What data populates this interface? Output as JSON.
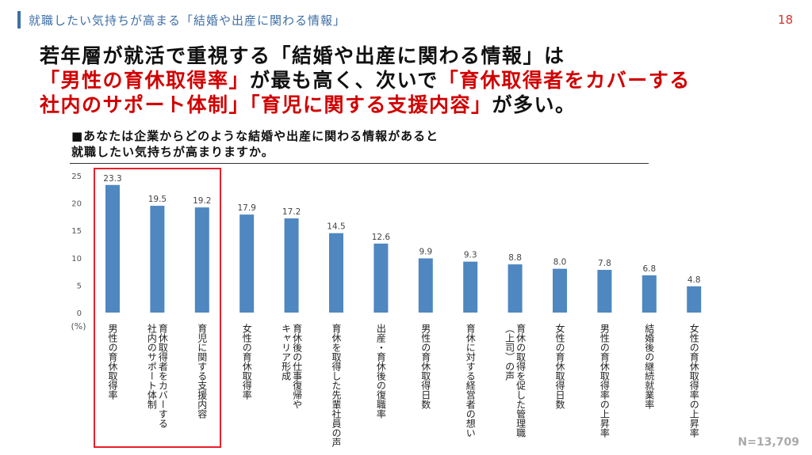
{
  "header": {
    "title": "就職したい気持ちが高まる「結婚や出産に関わる情報」",
    "page_number": "18"
  },
  "headline": {
    "line1": [
      {
        "text": "若年層が就活で重視する「結婚や出産に関わる情報」は",
        "color": "#111111"
      }
    ],
    "line2": [
      {
        "text": "「男性の育休取得率」",
        "color": "#d10000"
      },
      {
        "text": "が最も高く、次いで",
        "color": "#111111"
      },
      {
        "text": "「育休取得者をカバーする",
        "color": "#d10000"
      }
    ],
    "line3": [
      {
        "text": "社内のサポート体制」「育児に関する支援内容」",
        "color": "#d10000"
      },
      {
        "text": "が多い。",
        "color": "#111111"
      }
    ]
  },
  "question": {
    "line1": "■あなたは企業からどのような結婚や出産に関わる情報があると",
    "line2": "就職したい気持ちが高まりますか。"
  },
  "note": "N=13,709",
  "chart_data": {
    "type": "bar",
    "ylabel": "(%)",
    "ylim": [
      0,
      25
    ],
    "yticks": [
      0,
      5,
      10,
      15,
      20,
      25
    ],
    "bar_color": "#4f87c0",
    "highlight_color": "#e8202a",
    "highlighted_categories": [
      0,
      1,
      2
    ],
    "categories": [
      [
        "男性の育休取得率"
      ],
      [
        "育休取得者をカバーする",
        "社内のサポート体制"
      ],
      [
        "育児に関する支援内容"
      ],
      [
        "女性の育休取得率"
      ],
      [
        "育休後の仕事復帰や",
        "キャリア形成"
      ],
      [
        "育休を取得した先輩社員の声"
      ],
      [
        "出産・育休後の復職率"
      ],
      [
        "男性の育休取得日数"
      ],
      [
        "育休に対する経営者の想い"
      ],
      [
        "育休の取得を促した管理職",
        "（上司）の声"
      ],
      [
        "女性の育休取得日数"
      ],
      [
        "男性の育休取得率の上昇率"
      ],
      [
        "結婚後の継続就業率"
      ],
      [
        "女性の育休取得率の上昇率"
      ]
    ],
    "values": [
      23.3,
      19.5,
      19.2,
      17.9,
      17.2,
      14.5,
      12.6,
      9.9,
      9.3,
      8.8,
      8.0,
      7.8,
      6.8,
      4.8
    ],
    "value_labels": [
      "23.3",
      "19.5",
      "19.2",
      "17.9",
      "17.2",
      "14.5",
      "12.6",
      "9.9",
      "9.3",
      "8.8",
      "8.0",
      "7.8",
      "6.8",
      "4.8"
    ]
  }
}
